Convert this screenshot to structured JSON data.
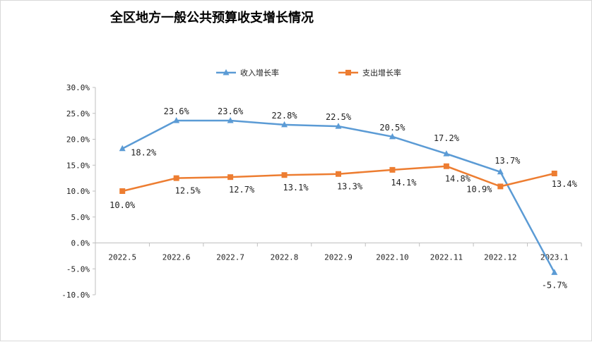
{
  "chart_data": {
    "type": "line",
    "title": "全区地方一般公共预算收支增长情况",
    "categories": [
      "2022.5",
      "2022.6",
      "2022.7",
      "2022.8",
      "2022.9",
      "2022.10",
      "2022.11",
      "2022.12",
      "2023.1"
    ],
    "series": [
      {
        "name": "收入增长率",
        "color": "#5b9bd5",
        "marker": "triangle",
        "values": [
          18.2,
          23.6,
          23.6,
          22.8,
          22.5,
          20.5,
          17.2,
          13.7,
          -5.7
        ],
        "labels": [
          "18.2%",
          "23.6%",
          "23.6%",
          "22.8%",
          "22.5%",
          "20.5%",
          "17.2%",
          "13.7%",
          "-5.7%"
        ]
      },
      {
        "name": "支出增长率",
        "color": "#ed7d31",
        "marker": "square",
        "values": [
          10.0,
          12.5,
          12.7,
          13.1,
          13.3,
          14.1,
          14.8,
          10.9,
          13.4
        ],
        "labels": [
          "10.0%",
          "12.5%",
          "12.7%",
          "13.1%",
          "13.3%",
          "14.1%",
          "14.8%",
          "10.9%",
          "13.4%"
        ]
      }
    ],
    "ylim": [
      -10,
      30
    ],
    "yticks": [
      "-10.0%",
      "-5.0%",
      "0.0%",
      "5.0%",
      "10.0%",
      "15.0%",
      "20.0%",
      "25.0%",
      "30.0%"
    ],
    "grid": false,
    "legend": "top"
  }
}
